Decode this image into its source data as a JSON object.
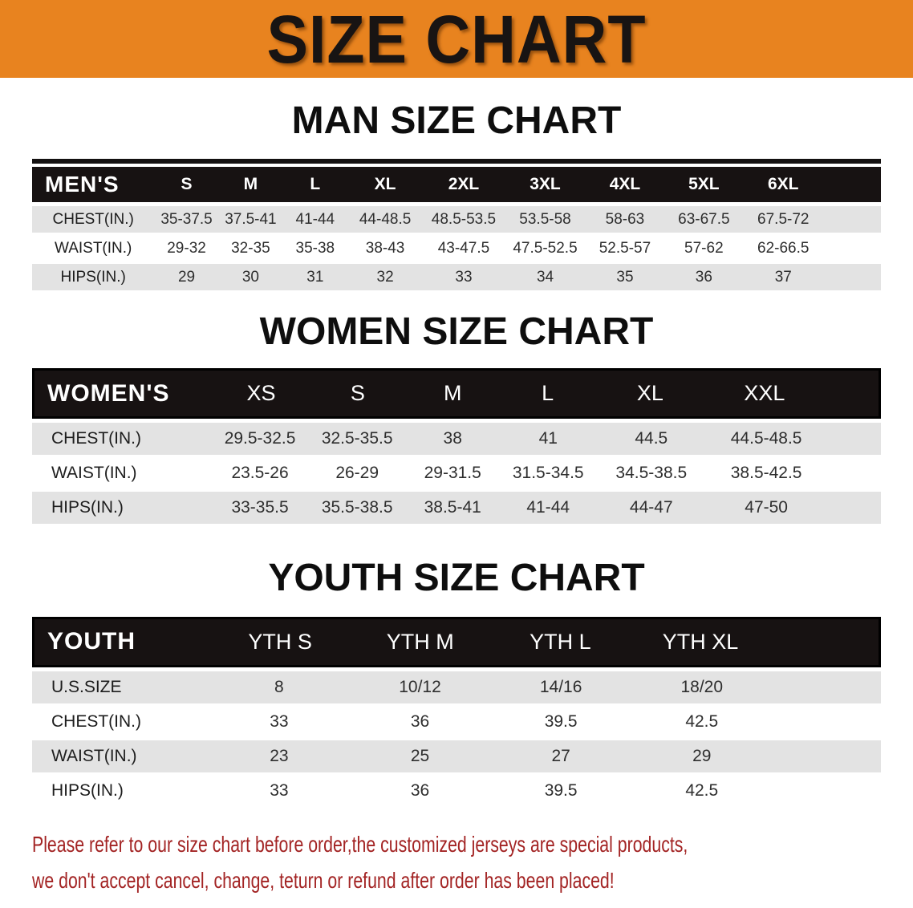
{
  "banner": {
    "title": "SIZE CHART",
    "bg_color": "#E8831F",
    "text_color": "#181413"
  },
  "sections": {
    "men": {
      "heading": "MAN SIZE CHART",
      "table": {
        "label": "MEN'S",
        "columns": [
          "S",
          "M",
          "L",
          "XL",
          "2XL",
          "3XL",
          "4XL",
          "5XL",
          "6XL"
        ],
        "rows": [
          {
            "label": "CHEST(IN.)",
            "values": [
              "35-37.5",
              "37.5-41",
              "41-44",
              "44-48.5",
              "48.5-53.5",
              "53.5-58",
              "58-63",
              "63-67.5",
              "67.5-72"
            ]
          },
          {
            "label": "WAIST(IN.)",
            "values": [
              "29-32",
              "32-35",
              "35-38",
              "38-43",
              "43-47.5",
              "47.5-52.5",
              "52.5-57",
              "57-62",
              "62-66.5"
            ]
          },
          {
            "label": "HIPS(IN.)",
            "values": [
              "29",
              "30",
              "31",
              "32",
              "33",
              "34",
              "35",
              "36",
              "37"
            ]
          }
        ]
      }
    },
    "women": {
      "heading": "WOMEN SIZE CHART",
      "table": {
        "label": "WOMEN'S",
        "columns": [
          "XS",
          "S",
          "M",
          "L",
          "XL",
          "XXL"
        ],
        "rows": [
          {
            "label": "CHEST(IN.)",
            "values": [
              "29.5-32.5",
              "32.5-35.5",
              "38",
              "41",
              "44.5",
              "44.5-48.5"
            ]
          },
          {
            "label": "WAIST(IN.)",
            "values": [
              "23.5-26",
              "26-29",
              "29-31.5",
              "31.5-34.5",
              "34.5-38.5",
              "38.5-42.5"
            ]
          },
          {
            "label": "HIPS(IN.)",
            "values": [
              "33-35.5",
              "35.5-38.5",
              "38.5-41",
              "41-44",
              "44-47",
              "47-50"
            ]
          }
        ]
      }
    },
    "youth": {
      "heading": "YOUTH SIZE CHART",
      "table": {
        "label": "YOUTH",
        "columns": [
          "YTH S",
          "YTH M",
          "YTH L",
          "YTH XL"
        ],
        "rows": [
          {
            "label": "U.S.SIZE",
            "values": [
              "8",
              "10/12",
              "14/16",
              "18/20"
            ]
          },
          {
            "label": "CHEST(IN.)",
            "values": [
              "33",
              "36",
              "39.5",
              "42.5"
            ]
          },
          {
            "label": "WAIST(IN.)",
            "values": [
              "23",
              "25",
              "27",
              "29"
            ]
          },
          {
            "label": "HIPS(IN.)",
            "values": [
              "33",
              "36",
              "39.5",
              "42.5"
            ]
          }
        ]
      }
    }
  },
  "notice": {
    "line1": "Please refer to our size chart before order,the customized jerseys are special products,",
    "line2": "we don't accept cancel, change, teturn or refund after order has been placed!",
    "color": "#A32424"
  }
}
